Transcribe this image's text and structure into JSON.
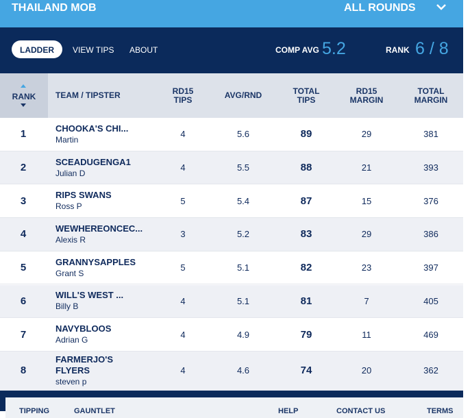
{
  "header": {
    "team": "THAILAND MOB",
    "round": "ALL ROUNDS"
  },
  "nav": {
    "tabs": [
      "LADDER",
      "VIEW TIPS",
      "ABOUT"
    ],
    "comp_avg_label": "COMP AVG",
    "comp_avg": "5.2",
    "rank_label": "RANK",
    "rank": "6 / 8"
  },
  "table": {
    "columns": [
      "RANK",
      "TEAM / TIPSTER",
      "RD15 TIPS",
      "AVG/RND",
      "TOTAL TIPS",
      "RD15 MARGIN",
      "TOTAL MARGIN"
    ],
    "rows": [
      [
        1,
        "CHOOKA'S CHI...",
        "Martin",
        4,
        5.6,
        89,
        29,
        381
      ],
      [
        2,
        "SCEADUGENGA1",
        "Julian D",
        4,
        5.5,
        88,
        21,
        393
      ],
      [
        3,
        "RIPS SWANS",
        "Ross P",
        5,
        5.4,
        87,
        15,
        376
      ],
      [
        4,
        "WEWHEREONCEC...",
        "Alexis R",
        3,
        5.2,
        83,
        29,
        386
      ],
      [
        5,
        "GRANNYSAPPLES",
        "Grant S",
        5,
        5.1,
        82,
        23,
        397
      ],
      [
        6,
        "WILL'S WEST ...",
        "Billy B",
        4,
        5.1,
        81,
        7,
        405
      ],
      [
        7,
        "NAVYBLOOS",
        "Adrian G",
        4,
        4.9,
        79,
        11,
        469
      ],
      [
        8,
        "FARMERJO'S FLYERS",
        "steven p",
        4,
        4.6,
        74,
        20,
        362
      ]
    ]
  },
  "footer": {
    "links": [
      "TIPPING",
      "GAUNTLET",
      "HELP",
      "CONTACT US",
      "TERMS"
    ]
  }
}
